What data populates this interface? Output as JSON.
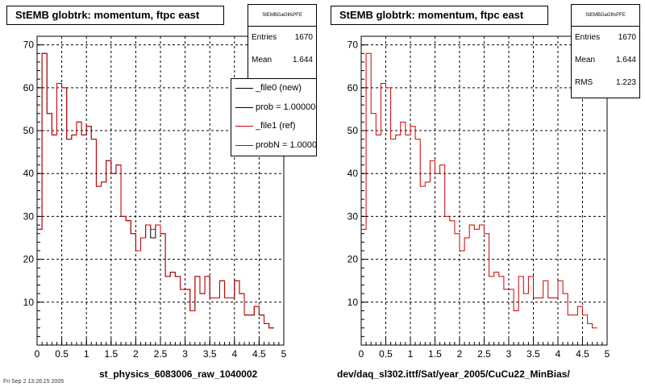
{
  "colors": {
    "new": "#000000",
    "ref": "#cc0000",
    "grid": "#000000"
  },
  "left_panel": {
    "title": "StEMB globtrk: momentum, ftpc east",
    "stats": {
      "name": "StEMBGaGfrkPFE",
      "entries_label": "Entries",
      "entries": "1670",
      "mean_label": "Mean",
      "mean": "1.644"
    },
    "legend": [
      {
        "label": "_file0 (new)",
        "color": "#000000"
      },
      {
        "label": "prob = 1.000000",
        "color": "#000000"
      },
      {
        "label": "_file1 (ref)",
        "color": "#cc0000"
      },
      {
        "label": "probN = 1.000000",
        "color": "#cc0000"
      }
    ],
    "footer": "st_physics_6083006_raw_1040002"
  },
  "right_panel": {
    "title": "StEMB globtrk: momentum, ftpc east",
    "stats": {
      "name": "StEMBGaGfrkPFE",
      "entries_label": "Entries",
      "entries": "1670",
      "mean_label": "Mean",
      "mean": "1.644",
      "rms_label": "RMS",
      "rms": "1.223"
    },
    "footer": "dev/daq_sl302.ittf/Sat/year_2005/CuCu22_MinBias/"
  },
  "timestamp": "Fri Sep 2 13:26:15 2005",
  "chart_data": [
    {
      "type": "histogram",
      "title": "StEMB globtrk: momentum, ftpc east",
      "xlim": [
        0,
        5
      ],
      "ylim": [
        0,
        72
      ],
      "xticks": [
        "0",
        "0.5",
        "1",
        "1.5",
        "2",
        "2.5",
        "3",
        "3.5",
        "4",
        "4.5",
        "5"
      ],
      "yticks": [
        "10",
        "20",
        "30",
        "40",
        "50",
        "60",
        "70"
      ],
      "grid": true,
      "bin_width": 0.1,
      "bin_edges_start": 0,
      "series": [
        {
          "name": "_file0 (new)",
          "color": "#000000",
          "values": [
            27,
            68,
            54,
            49,
            61,
            60,
            48,
            49,
            52,
            49,
            51,
            48,
            37,
            38,
            43,
            40,
            42,
            30,
            29,
            26,
            22,
            25,
            28,
            25,
            28,
            26,
            16,
            17,
            16,
            13,
            13,
            8,
            16,
            12,
            16,
            11,
            11,
            15,
            11,
            11,
            15,
            12,
            7,
            7,
            9,
            7,
            5,
            4
          ]
        },
        {
          "name": "_file1 (ref)",
          "color": "#cc0000",
          "values": [
            27,
            68,
            54,
            49,
            61,
            60,
            48,
            49,
            52,
            49,
            51,
            48,
            37,
            38,
            43,
            40,
            42,
            30,
            29,
            26,
            22,
            25,
            28,
            27,
            28,
            26,
            16,
            17,
            16,
            13,
            13,
            8,
            16,
            12,
            16,
            11,
            11,
            15,
            11,
            11,
            15,
            12,
            7,
            7,
            9,
            7,
            5,
            4
          ]
        }
      ]
    },
    {
      "type": "histogram",
      "title": "StEMB globtrk: momentum, ftpc east",
      "xlim": [
        0,
        5
      ],
      "ylim": [
        0,
        72
      ],
      "xticks": [
        "0",
        "0.5",
        "1",
        "1.5",
        "2",
        "2.5",
        "3",
        "3.5",
        "4",
        "4.5",
        "5"
      ],
      "yticks": [
        "10",
        "20",
        "30",
        "40",
        "50",
        "60",
        "70"
      ],
      "grid": true,
      "bin_width": 0.1,
      "bin_edges_start": 0,
      "series": [
        {
          "name": "_file1 (ref)",
          "color": "#cc0000",
          "values": [
            27,
            68,
            54,
            49,
            61,
            60,
            48,
            49,
            52,
            49,
            51,
            48,
            37,
            38,
            43,
            40,
            42,
            30,
            29,
            26,
            22,
            25,
            28,
            27,
            28,
            26,
            16,
            17,
            16,
            13,
            13,
            8,
            16,
            12,
            16,
            11,
            11,
            15,
            11,
            11,
            15,
            12,
            7,
            7,
            9,
            7,
            5,
            4
          ]
        }
      ]
    }
  ]
}
